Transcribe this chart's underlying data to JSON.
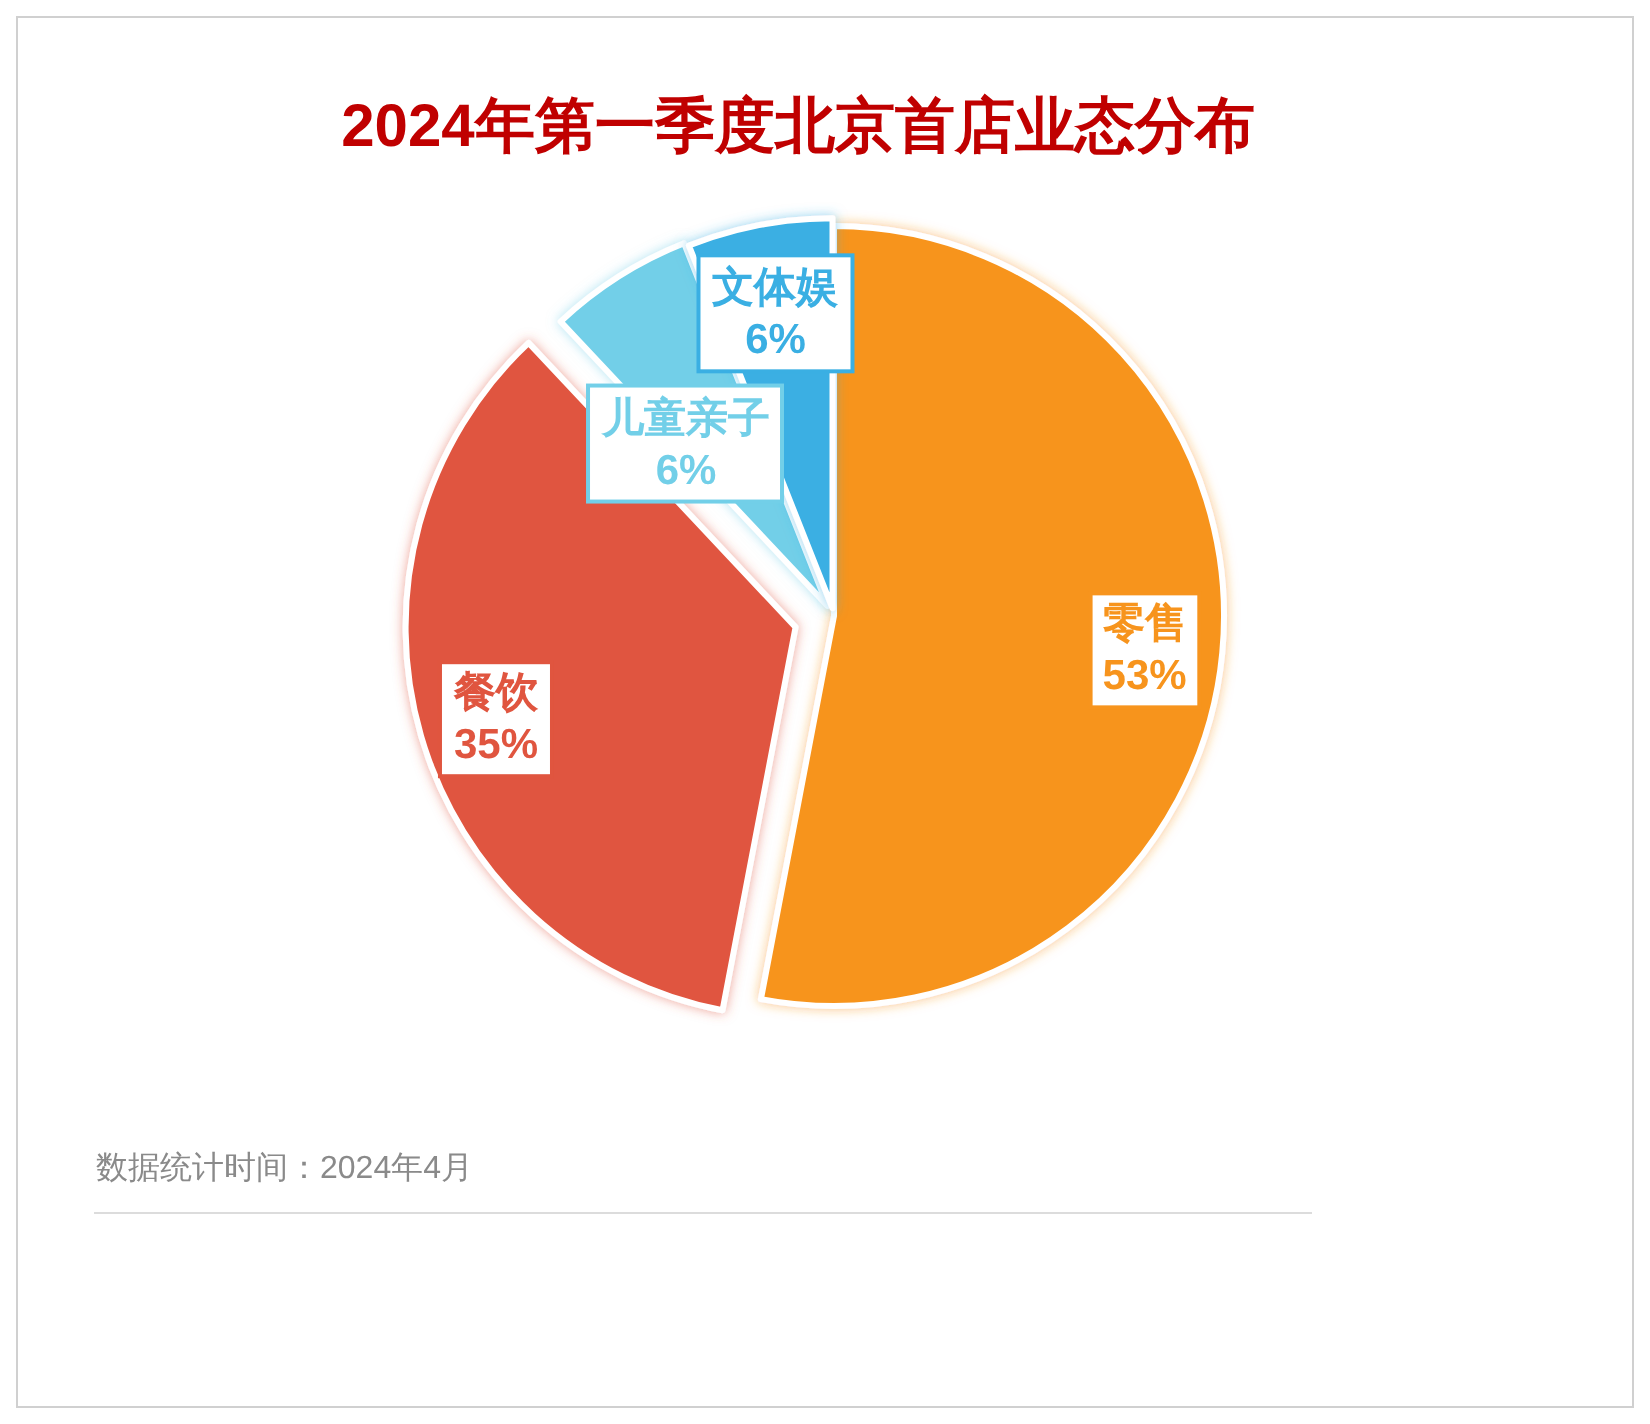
{
  "chart_data": {
    "type": "pie",
    "title": "2024年第一季度北京首店业态分布",
    "categories": [
      "零售",
      "餐饮",
      "儿童亲子",
      "文体娱"
    ],
    "values": [
      53,
      35,
      6,
      6
    ],
    "colors": [
      "#f7941d",
      "#e0553f",
      "#72cfe8",
      "#3aafe3"
    ],
    "value_labels": [
      "53%",
      "35%",
      "6%",
      "6%"
    ],
    "annotations": [
      "数据统计时间：2024年4月"
    ]
  }
}
